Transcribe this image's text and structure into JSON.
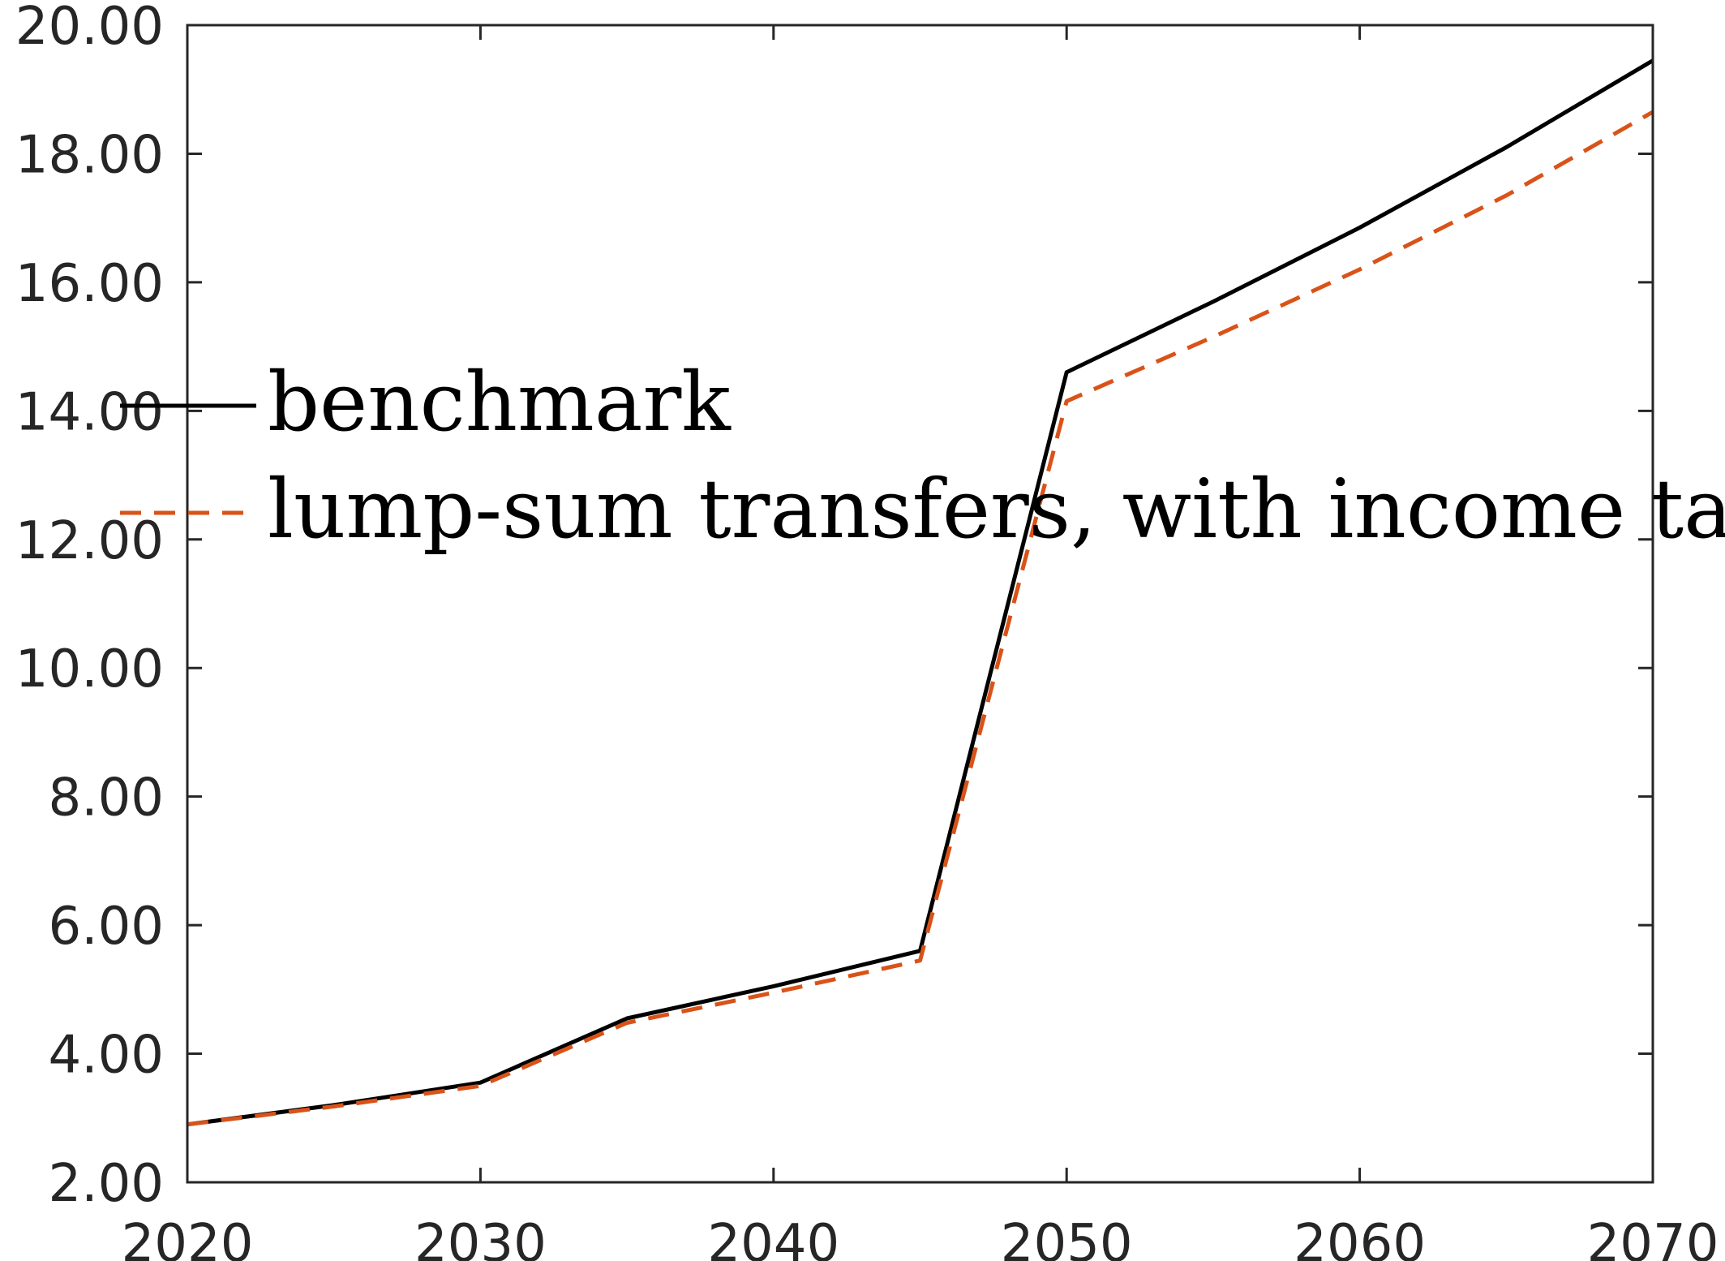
{
  "chart_data": {
    "type": "line",
    "title": "",
    "xlabel": "",
    "ylabel": "",
    "xlim": [
      2020,
      2070
    ],
    "ylim": [
      2,
      20
    ],
    "xticks": [
      2020,
      2030,
      2040,
      2050,
      2060,
      2070
    ],
    "xtick_labels": [
      "2020",
      "2030",
      "2040",
      "2050",
      "2060",
      "2070"
    ],
    "yticks": [
      2,
      4,
      6,
      8,
      10,
      12,
      14,
      16,
      18,
      20
    ],
    "ytick_labels": [
      "2.00",
      "4.00",
      "6.00",
      "8.00",
      "10.00",
      "12.00",
      "14.00",
      "16.00",
      "18.00",
      "20.00"
    ],
    "grid": false,
    "legend_position": "middle-left",
    "series": [
      {
        "name": "benchmark",
        "color": "#000000",
        "style": "solid",
        "x": [
          2020,
          2025,
          2030,
          2035,
          2040,
          2045,
          2050,
          2055,
          2060,
          2065,
          2070
        ],
        "y": [
          2.9,
          3.2,
          3.55,
          4.55,
          5.05,
          5.6,
          14.6,
          15.7,
          16.85,
          18.1,
          19.45
        ]
      },
      {
        "name": "lump-sum transfers, with income tax",
        "color": "#D95319",
        "style": "dashed",
        "x": [
          2020,
          2025,
          2030,
          2035,
          2040,
          2045,
          2050,
          2055,
          2060,
          2065,
          2070
        ],
        "y": [
          2.9,
          3.18,
          3.5,
          4.48,
          4.95,
          5.45,
          14.15,
          15.15,
          16.2,
          17.35,
          18.65
        ]
      }
    ]
  }
}
